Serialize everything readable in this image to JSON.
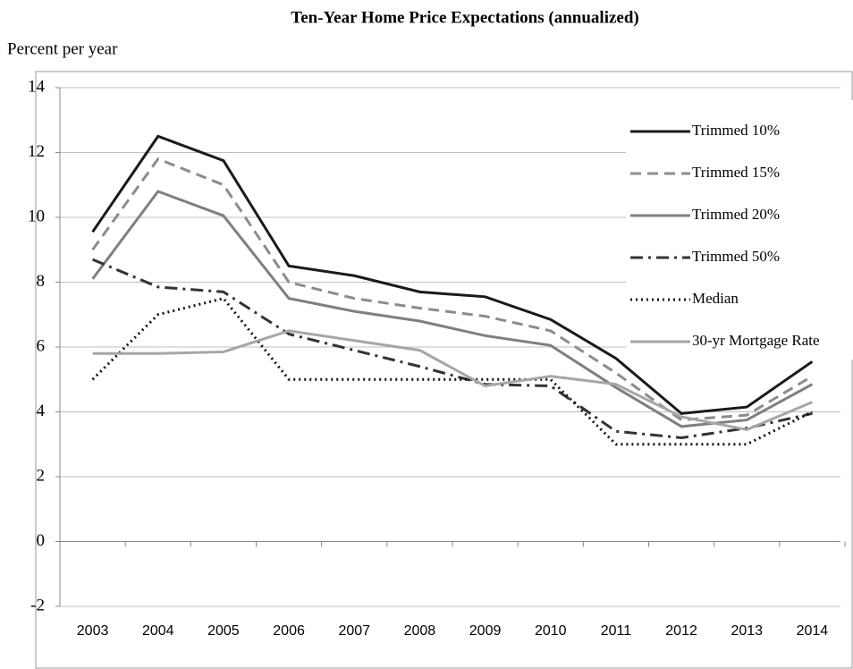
{
  "chart_data": {
    "type": "line",
    "title": "Ten-Year Home Price Expectations (annualized)",
    "y_label": "Percent per year",
    "categories": [
      "2003",
      "2004",
      "2005",
      "2006",
      "2007",
      "2008",
      "2009",
      "2010",
      "2011",
      "2012",
      "2013",
      "2014"
    ],
    "series": [
      {
        "name": "Trimmed 10%",
        "color": "#1a1a1a",
        "dash": "solid",
        "values": [
          9.55,
          12.5,
          11.75,
          8.5,
          8.2,
          7.7,
          7.55,
          6.85,
          5.65,
          3.95,
          4.15,
          5.55
        ]
      },
      {
        "name": "Trimmed 15%",
        "color": "#8c8c8c",
        "dash": "dashed",
        "values": [
          9.0,
          11.8,
          11.0,
          8.0,
          7.5,
          7.2,
          6.95,
          6.5,
          5.2,
          3.75,
          3.9,
          5.1
        ]
      },
      {
        "name": "Trimmed 20%",
        "color": "#7f7f7f",
        "dash": "solid",
        "values": [
          8.1,
          10.8,
          10.05,
          7.5,
          7.1,
          6.8,
          6.35,
          6.05,
          4.75,
          3.55,
          3.75,
          4.85
        ]
      },
      {
        "name": "Trimmed 50%",
        "color": "#333333",
        "dash": "dashdot",
        "values": [
          8.7,
          7.85,
          7.7,
          6.4,
          5.9,
          5.4,
          4.85,
          4.8,
          3.4,
          3.2,
          3.5,
          3.95
        ]
      },
      {
        "name": "Median",
        "color": "#111111",
        "dash": "dotted",
        "values": [
          5.0,
          7.0,
          7.5,
          5.0,
          5.0,
          5.0,
          5.0,
          5.0,
          3.0,
          3.0,
          3.0,
          4.0
        ]
      },
      {
        "name": "30-yr Mortgage Rate",
        "color": "#a6a6a6",
        "dash": "solid",
        "values": [
          5.8,
          5.8,
          5.85,
          6.5,
          6.2,
          5.9,
          4.8,
          5.1,
          4.85,
          3.85,
          3.45,
          4.3
        ]
      }
    ],
    "ylim": [
      -2,
      14
    ],
    "yticks": [
      -2,
      0,
      2,
      4,
      6,
      8,
      10,
      12,
      14
    ],
    "grid": true,
    "legend": "upper right"
  }
}
